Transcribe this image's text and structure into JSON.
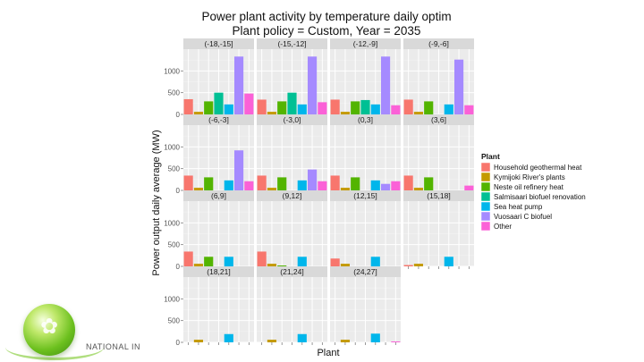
{
  "chart_data": {
    "type": "bar",
    "title": "Power plant activity by temperature daily optim",
    "subtitle": "Plant policy = Custom, Year = 2035",
    "xlabel": "Plant",
    "ylabel": "Power output daily average (MW)",
    "ylim": [
      0,
      1500
    ],
    "yticks": [
      0,
      500,
      1000
    ],
    "grid": true,
    "legend_title": "Plant",
    "legend_position": "right",
    "series": [
      {
        "name": "Household geothermal heat",
        "color": "#F8766D"
      },
      {
        "name": "Kymijoki River's plants",
        "color": "#C49A00"
      },
      {
        "name": "Neste oil refinery heat",
        "color": "#53B400"
      },
      {
        "name": "Salmisaari biofuel renovation",
        "color": "#00C094"
      },
      {
        "name": "Sea heat pump",
        "color": "#00B6EB"
      },
      {
        "name": "Vuosaari C biofuel",
        "color": "#A58AFF"
      },
      {
        "name": "Other",
        "color": "#FB61D7"
      }
    ],
    "panels": [
      {
        "label": "(-18,-15]",
        "values": [
          350,
          60,
          300,
          500,
          230,
          1330,
          480
        ]
      },
      {
        "label": "(-15,-12]",
        "values": [
          340,
          60,
          300,
          500,
          230,
          1330,
          280
        ]
      },
      {
        "label": "(-12,-9]",
        "values": [
          340,
          60,
          300,
          330,
          230,
          1330,
          210
        ]
      },
      {
        "label": "(-9,-6]",
        "values": [
          340,
          60,
          300,
          0,
          230,
          1260,
          210
        ]
      },
      {
        "label": "(-6,-3]",
        "values": [
          340,
          60,
          300,
          0,
          230,
          920,
          210
        ]
      },
      {
        "label": "(-3,0]",
        "values": [
          340,
          60,
          300,
          0,
          230,
          480,
          210
        ]
      },
      {
        "label": "(0,3]",
        "values": [
          340,
          60,
          300,
          0,
          230,
          150,
          210
        ]
      },
      {
        "label": "(3,6]",
        "values": [
          340,
          60,
          300,
          0,
          0,
          0,
          110
        ]
      },
      {
        "label": "(6,9]",
        "values": [
          340,
          60,
          220,
          0,
          220,
          0,
          0
        ]
      },
      {
        "label": "(9,12]",
        "values": [
          340,
          60,
          20,
          0,
          220,
          0,
          0
        ]
      },
      {
        "label": "(12,15]",
        "values": [
          180,
          60,
          0,
          0,
          220,
          0,
          0
        ]
      },
      {
        "label": "(15,18]",
        "values": [
          30,
          60,
          0,
          0,
          220,
          0,
          0
        ]
      },
      {
        "label": "(18,21]",
        "values": [
          0,
          60,
          0,
          0,
          190,
          0,
          0
        ]
      },
      {
        "label": "(21,24]",
        "values": [
          0,
          60,
          0,
          0,
          190,
          0,
          0
        ]
      },
      {
        "label": "(24,27]",
        "values": [
          0,
          60,
          0,
          0,
          200,
          0,
          20
        ]
      }
    ]
  },
  "logo": {
    "text": "NATIONAL IN"
  }
}
